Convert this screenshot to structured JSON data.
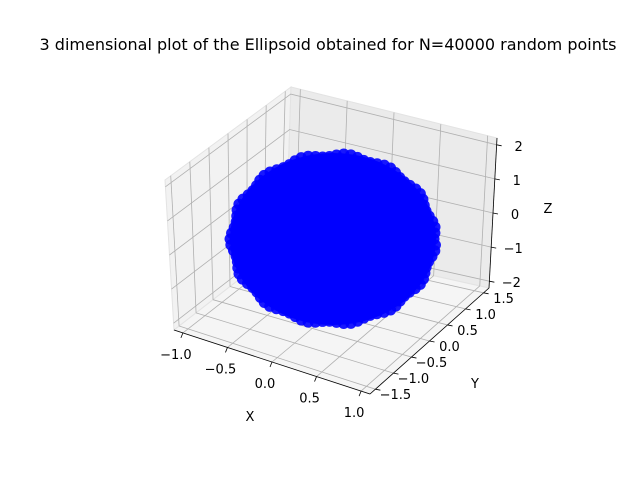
{
  "chart_data": {
    "type": "scatter",
    "title": "3 dimensional plot of the Ellipsoid obtained for N=40000 random points",
    "xlabel": "X",
    "ylabel": "Y",
    "zlabel": "Z",
    "n_points": 40000,
    "x_ticks": [
      "−1.0",
      "−0.5",
      "0.0",
      "0.5",
      "1.0"
    ],
    "y_ticks": [
      "−1.5",
      "−1.0",
      "−0.5",
      "0.0",
      "0.5",
      "1.0",
      "1.5"
    ],
    "z_ticks": [
      "−2",
      "−1",
      "0",
      "1",
      "2"
    ],
    "xlim": [
      -1.1,
      1.1
    ],
    "ylim": [
      -1.65,
      1.65
    ],
    "zlim": [
      -2.2,
      2.2
    ],
    "semi_axes": {
      "a": 1.0,
      "b": 1.5,
      "c": 2.0
    },
    "marker_color": "#0000ff",
    "grid": true,
    "projection": "3d"
  }
}
